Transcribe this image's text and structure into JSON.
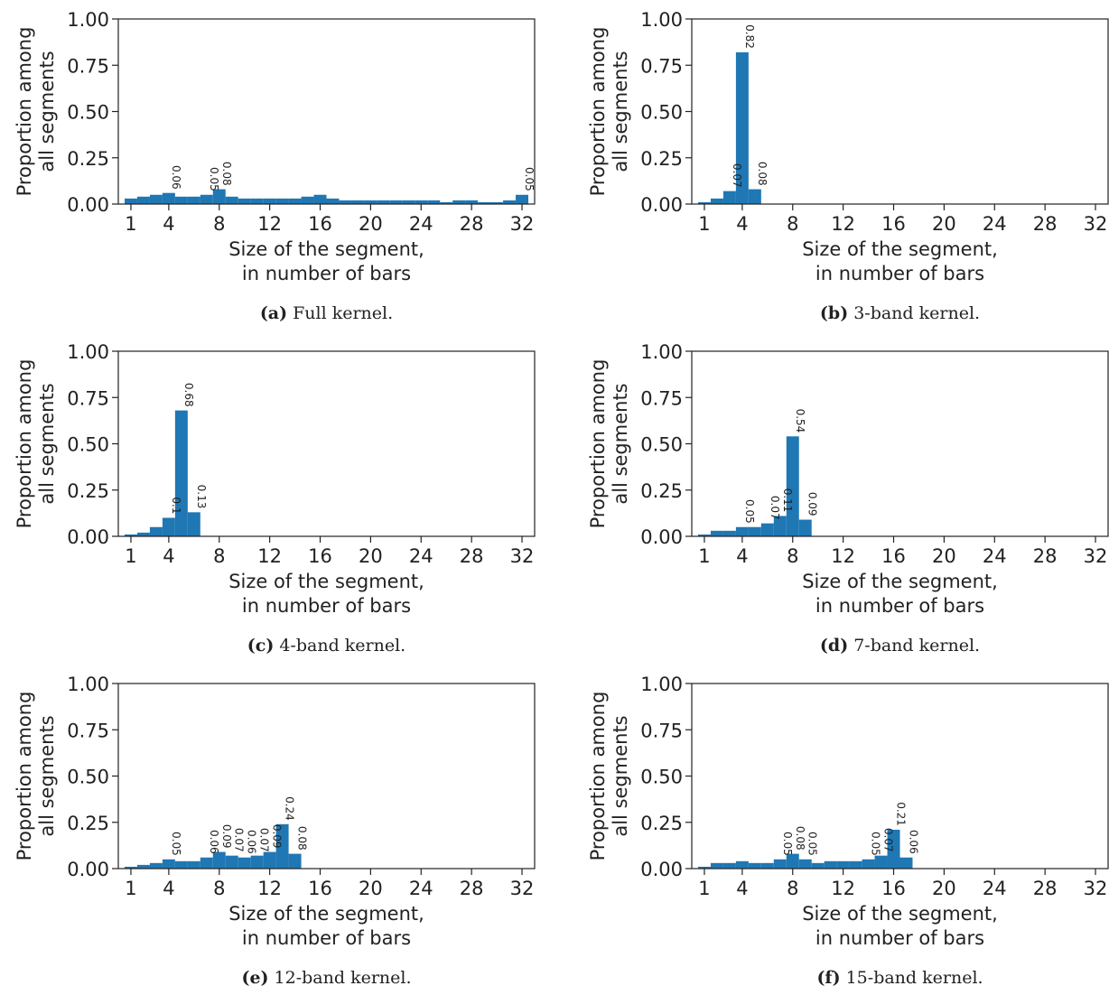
{
  "chart_data": [
    {
      "type": "bar",
      "caption_tag": "(a)",
      "caption_text": "Full kernel.",
      "xlabel_line1": "Size of the segment,",
      "xlabel_line2": "in number of bars",
      "ylabel_line1": "Proportion among",
      "ylabel_line2": "all segments",
      "xticks": [
        "1",
        "4",
        "8",
        "12",
        "16",
        "20",
        "24",
        "28",
        "32"
      ],
      "yticks": [
        "0.00",
        "0.25",
        "0.50",
        "0.75",
        "1.00"
      ],
      "xlim": [
        0,
        33
      ],
      "ylim": [
        0,
        1
      ],
      "x": [
        1,
        2,
        3,
        4,
        5,
        6,
        7,
        8,
        9,
        10,
        11,
        12,
        13,
        14,
        15,
        16,
        17,
        18,
        19,
        20,
        21,
        22,
        23,
        24,
        25,
        26,
        27,
        28,
        29,
        30,
        31,
        32
      ],
      "values": [
        0.03,
        0.04,
        0.05,
        0.06,
        0.04,
        0.04,
        0.05,
        0.08,
        0.04,
        0.03,
        0.03,
        0.03,
        0.03,
        0.03,
        0.04,
        0.05,
        0.03,
        0.02,
        0.02,
        0.02,
        0.02,
        0.02,
        0.02,
        0.02,
        0.02,
        0.01,
        0.02,
        0.02,
        0.01,
        0.01,
        0.02,
        0.05
      ],
      "annotations": [
        {
          "x": 4,
          "label": "0.06"
        },
        {
          "x": 7,
          "label": "0.05"
        },
        {
          "x": 8,
          "label": "0.08"
        },
        {
          "x": 32,
          "label": "0.05"
        }
      ]
    },
    {
      "type": "bar",
      "caption_tag": "(b)",
      "caption_text": "3-band kernel.",
      "xlabel_line1": "Size of the segment,",
      "xlabel_line2": "in number of bars",
      "ylabel_line1": "Proportion among",
      "ylabel_line2": "all segments",
      "xticks": [
        "1",
        "4",
        "8",
        "12",
        "16",
        "20",
        "24",
        "28",
        "32"
      ],
      "yticks": [
        "0.00",
        "0.25",
        "0.50",
        "0.75",
        "1.00"
      ],
      "xlim": [
        0,
        33
      ],
      "ylim": [
        0,
        1
      ],
      "x": [
        1,
        2,
        3,
        4,
        5
      ],
      "values": [
        0.01,
        0.03,
        0.07,
        0.82,
        0.08
      ],
      "annotations": [
        {
          "x": 3,
          "label": "0.07"
        },
        {
          "x": 4,
          "label": "0.82"
        },
        {
          "x": 5,
          "label": "0.08"
        }
      ]
    },
    {
      "type": "bar",
      "caption_tag": "(c)",
      "caption_text": "4-band kernel.",
      "xlabel_line1": "Size of the segment,",
      "xlabel_line2": "in number of bars",
      "ylabel_line1": "Proportion among",
      "ylabel_line2": "all segments",
      "xticks": [
        "1",
        "4",
        "8",
        "12",
        "16",
        "20",
        "24",
        "28",
        "32"
      ],
      "yticks": [
        "0.00",
        "0.25",
        "0.50",
        "0.75",
        "1.00"
      ],
      "xlim": [
        0,
        33
      ],
      "ylim": [
        0,
        1
      ],
      "x": [
        1,
        2,
        3,
        4,
        5,
        6
      ],
      "values": [
        0.01,
        0.02,
        0.05,
        0.1,
        0.68,
        0.13
      ],
      "annotations": [
        {
          "x": 4,
          "label": "0.1"
        },
        {
          "x": 5,
          "label": "0.68"
        },
        {
          "x": 6,
          "label": "0.13"
        }
      ]
    },
    {
      "type": "bar",
      "caption_tag": "(d)",
      "caption_text": "7-band kernel.",
      "xlabel_line1": "Size of the segment,",
      "xlabel_line2": "in number of bars",
      "ylabel_line1": "Proportion among",
      "ylabel_line2": "all segments",
      "xticks": [
        "1",
        "4",
        "8",
        "12",
        "16",
        "20",
        "24",
        "28",
        "32"
      ],
      "yticks": [
        "0.00",
        "0.25",
        "0.50",
        "0.75",
        "1.00"
      ],
      "xlim": [
        0,
        33
      ],
      "ylim": [
        0,
        1
      ],
      "x": [
        1,
        2,
        3,
        4,
        5,
        6,
        7,
        8,
        9
      ],
      "values": [
        0.01,
        0.03,
        0.03,
        0.05,
        0.05,
        0.07,
        0.11,
        0.54,
        0.09
      ],
      "annotations": [
        {
          "x": 4,
          "label": "0.05"
        },
        {
          "x": 6,
          "label": "0.07"
        },
        {
          "x": 7,
          "label": "0.11"
        },
        {
          "x": 8,
          "label": "0.54"
        },
        {
          "x": 9,
          "label": "0.09"
        }
      ]
    },
    {
      "type": "bar",
      "caption_tag": "(e)",
      "caption_text": "12-band kernel.",
      "xlabel_line1": "Size of the segment,",
      "xlabel_line2": "in number of bars",
      "ylabel_line1": "Proportion among",
      "ylabel_line2": "all segments",
      "xticks": [
        "1",
        "4",
        "8",
        "12",
        "16",
        "20",
        "24",
        "28",
        "32"
      ],
      "yticks": [
        "0.00",
        "0.25",
        "0.50",
        "0.75",
        "1.00"
      ],
      "xlim": [
        0,
        33
      ],
      "ylim": [
        0,
        1
      ],
      "x": [
        1,
        2,
        3,
        4,
        5,
        6,
        7,
        8,
        9,
        10,
        11,
        12,
        13,
        14
      ],
      "values": [
        0.01,
        0.02,
        0.03,
        0.05,
        0.04,
        0.04,
        0.06,
        0.09,
        0.07,
        0.06,
        0.07,
        0.09,
        0.24,
        0.08
      ],
      "annotations": [
        {
          "x": 4,
          "label": "0.05"
        },
        {
          "x": 7,
          "label": "0.06"
        },
        {
          "x": 8,
          "label": "0.09"
        },
        {
          "x": 9,
          "label": "0.07"
        },
        {
          "x": 10,
          "label": "0.06"
        },
        {
          "x": 11,
          "label": "0.07"
        },
        {
          "x": 12,
          "label": "0.09"
        },
        {
          "x": 13,
          "label": "0.24"
        },
        {
          "x": 14,
          "label": "0.08"
        }
      ]
    },
    {
      "type": "bar",
      "caption_tag": "(f)",
      "caption_text": "15-band kernel.",
      "xlabel_line1": "Size of the segment,",
      "xlabel_line2": "in number of bars",
      "ylabel_line1": "Proportion among",
      "ylabel_line2": "all segments",
      "xticks": [
        "1",
        "4",
        "8",
        "12",
        "16",
        "20",
        "24",
        "28",
        "32"
      ],
      "yticks": [
        "0.00",
        "0.25",
        "0.50",
        "0.75",
        "1.00"
      ],
      "xlim": [
        0,
        33
      ],
      "ylim": [
        0,
        1
      ],
      "x": [
        1,
        2,
        3,
        4,
        5,
        6,
        7,
        8,
        9,
        10,
        11,
        12,
        13,
        14,
        15,
        16,
        17
      ],
      "values": [
        0.01,
        0.03,
        0.03,
        0.04,
        0.03,
        0.03,
        0.05,
        0.08,
        0.05,
        0.03,
        0.04,
        0.04,
        0.04,
        0.05,
        0.07,
        0.21,
        0.06
      ],
      "annotations": [
        {
          "x": 7,
          "label": "0.05"
        },
        {
          "x": 8,
          "label": "0.08"
        },
        {
          "x": 9,
          "label": "0.05"
        },
        {
          "x": 14,
          "label": "0.05"
        },
        {
          "x": 15,
          "label": "0.07"
        },
        {
          "x": 16,
          "label": "0.21"
        },
        {
          "x": 17,
          "label": "0.06"
        }
      ]
    }
  ],
  "colors": {
    "bar": "#1f77b4",
    "axis": "#222222"
  }
}
